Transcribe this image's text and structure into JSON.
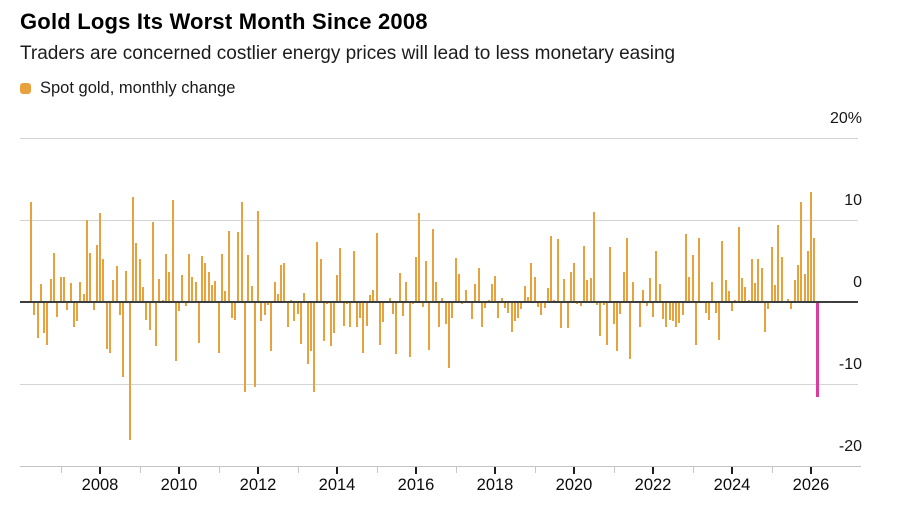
{
  "header": {
    "title": "Gold Logs Its Worst Month Since 2008",
    "subtitle": "Traders are concerned costlier energy prices will lead to less monetary easing"
  },
  "legend": {
    "label": "Spot gold, monthly change",
    "swatch_color": "#E8A23D"
  },
  "chart_data": {
    "type": "bar",
    "series_name": "Spot gold, monthly change",
    "unit": "%",
    "frequency": "monthly",
    "start_month": "2006-04",
    "end_month": "2026-03",
    "grid": "horizontal",
    "legend_position": "top-left",
    "ylim": [
      -20,
      20
    ],
    "x_domain_years": [
      2006,
      2027.2
    ],
    "bar_color": "#E8A23D",
    "zero_line_color": "#3D3D3D",
    "y_ticks": [
      {
        "value": 20,
        "label": "20%"
      },
      {
        "value": 10,
        "label": "10"
      },
      {
        "value": 0,
        "label": "0"
      },
      {
        "value": -10,
        "label": "-10"
      },
      {
        "value": -20,
        "label": "-20"
      }
    ],
    "x_ticks_major": [
      2008,
      2010,
      2012,
      2014,
      2016,
      2018,
      2020,
      2022,
      2024,
      2026
    ],
    "x_ticks_minor": [
      2007,
      2009,
      2011,
      2013,
      2015,
      2017,
      2019,
      2021,
      2023,
      2025
    ],
    "highlight": {
      "index": 239,
      "month": "2026-03",
      "value": -11.6,
      "color": "#DB3CA0",
      "note": "Worst month since 2008"
    },
    "values": [
      12.2,
      -1.6,
      -4.4,
      2.2,
      -3.8,
      -5.2,
      2.8,
      6.0,
      -1.8,
      3.0,
      3.0,
      -1.0,
      2.3,
      -3.0,
      -2.3,
      2.4,
      1.0,
      10.0,
      6.0,
      -1.0,
      6.9,
      10.9,
      5.2,
      -5.7,
      -6.2,
      2.7,
      4.4,
      -1.6,
      -9.2,
      3.8,
      -16.8,
      12.8,
      7.2,
      5.3,
      1.8,
      -2.2,
      -3.4,
      9.8,
      -5.4,
      2.8,
      0.2,
      5.9,
      3.7,
      12.5,
      -7.2,
      -1.1,
      3.3,
      -0.5,
      5.8,
      3.0,
      2.4,
      -5.0,
      5.6,
      4.7,
      3.7,
      2.1,
      2.6,
      -6.2,
      5.9,
      1.4,
      8.7,
      -1.9,
      -2.2,
      8.5,
      12.2,
      -11.0,
      5.7,
      1.9,
      -10.4,
      11.1,
      -2.3,
      -1.6,
      -0.4,
      -6.0,
      2.5,
      1.0,
      4.5,
      4.8,
      -3.1,
      0.2,
      -2.3,
      -1.5,
      -5.1,
      1.1,
      -7.6,
      -6.0,
      -11.0,
      7.3,
      5.3,
      -4.7,
      -0.3,
      -5.4,
      -3.8,
      3.3,
      6.6,
      -2.9,
      -0.2,
      -3.0,
      6.2,
      -3.0,
      -2.0,
      -6.2,
      -2.9,
      0.9,
      1.5,
      8.4,
      -5.2,
      -2.4,
      0.1,
      0.5,
      -1.5,
      -6.4,
      3.5,
      -1.7,
      2.4,
      -6.7,
      -0.3,
      5.5,
      10.9,
      -0.6,
      5.0,
      -5.9,
      8.9,
      2.5,
      -3.1,
      0.5,
      -2.7,
      -8.0,
      -1.9,
      5.4,
      3.4,
      -0.2,
      1.5,
      -0.1,
      -2.1,
      2.2,
      4.2,
      -3.1,
      -0.7,
      0.3,
      2.2,
      3.2,
      -2.0,
      0.5,
      -0.7,
      -1.3,
      -3.6,
      -2.3,
      -1.9,
      -0.9,
      2.0,
      0.6,
      4.8,
      3.1,
      -0.6,
      -1.6,
      -0.7,
      1.7,
      8.0,
      0.3,
      7.7,
      -3.2,
      2.8,
      -3.2,
      3.6,
      4.7,
      -0.2,
      -0.5,
      6.8,
      2.7,
      2.9,
      11.0,
      -0.4,
      -4.2,
      -0.4,
      -5.3,
      6.7,
      -2.7,
      -6.0,
      -1.5,
      3.6,
      7.8,
      -7.0,
      2.5,
      0.0,
      -3.1,
      1.5,
      -0.5,
      2.9,
      -1.8,
      6.2,
      2.2,
      -2.1,
      -3.1,
      -2.2,
      -2.3,
      -3.1,
      -2.6,
      -1.6,
      8.3,
      3.1,
      5.7,
      -5.3,
      7.8,
      0.1,
      -1.4,
      -2.2,
      2.4,
      -1.3,
      -4.6,
      7.4,
      2.7,
      1.3,
      -1.1,
      0.3,
      9.2,
      2.9,
      1.8,
      0.2,
      5.2,
      2.3,
      5.2,
      4.2,
      -3.6,
      -0.8,
      6.7,
      2.1,
      9.4,
      5.5,
      0.1,
      0.4,
      -0.8,
      2.7,
      4.5,
      12.2,
      3.4,
      6.2,
      13.4,
      7.8,
      -11.6
    ]
  }
}
